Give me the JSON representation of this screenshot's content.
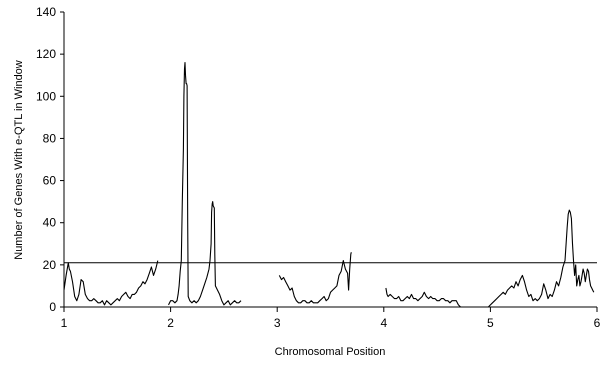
{
  "chart_data": {
    "type": "line",
    "title": "",
    "xlabel": "Chromosomal Position",
    "ylabel": "Number of Genes With e-QTL in Window",
    "xlim": [
      1,
      6
    ],
    "ylim": [
      0,
      140
    ],
    "x_ticks": [
      1,
      2,
      3,
      4,
      5,
      6
    ],
    "y_ticks": [
      0,
      20,
      40,
      60,
      80,
      100,
      120,
      140
    ],
    "grid": false,
    "legend": "none",
    "line_color": "#000000",
    "threshold": {
      "y": 21,
      "label": ""
    },
    "series": [
      {
        "segments": [
          [
            [
              1.0,
              8
            ],
            [
              1.02,
              15
            ],
            [
              1.04,
              21
            ],
            [
              1.05,
              18
            ],
            [
              1.06,
              17
            ],
            [
              1.08,
              12
            ],
            [
              1.1,
              5
            ],
            [
              1.12,
              3
            ],
            [
              1.14,
              6
            ],
            [
              1.16,
              13
            ],
            [
              1.18,
              12
            ],
            [
              1.2,
              6
            ],
            [
              1.22,
              4
            ],
            [
              1.24,
              3
            ],
            [
              1.26,
              3
            ],
            [
              1.28,
              4
            ],
            [
              1.3,
              3
            ],
            [
              1.32,
              2
            ],
            [
              1.34,
              2
            ],
            [
              1.36,
              3
            ],
            [
              1.38,
              1
            ],
            [
              1.4,
              3
            ],
            [
              1.42,
              2
            ],
            [
              1.44,
              1
            ],
            [
              1.46,
              2
            ],
            [
              1.48,
              3
            ],
            [
              1.5,
              4
            ],
            [
              1.52,
              3
            ],
            [
              1.54,
              5
            ],
            [
              1.56,
              6
            ],
            [
              1.58,
              7
            ],
            [
              1.6,
              5
            ],
            [
              1.62,
              4
            ],
            [
              1.64,
              6
            ],
            [
              1.66,
              6
            ],
            [
              1.68,
              7
            ],
            [
              1.7,
              9
            ],
            [
              1.72,
              10
            ],
            [
              1.74,
              12
            ],
            [
              1.76,
              11
            ],
            [
              1.78,
              13
            ],
            [
              1.8,
              16
            ],
            [
              1.82,
              19
            ],
            [
              1.84,
              15
            ],
            [
              1.86,
              18
            ],
            [
              1.88,
              22
            ]
          ],
          [
            [
              1.98,
              1
            ],
            [
              2.0,
              3
            ],
            [
              2.02,
              3
            ],
            [
              2.04,
              2
            ],
            [
              2.06,
              3
            ],
            [
              2.07,
              6
            ],
            [
              2.08,
              10
            ],
            [
              2.09,
              17
            ],
            [
              2.1,
              22
            ],
            [
              2.11,
              50
            ],
            [
              2.12,
              75
            ],
            [
              2.125,
              100
            ],
            [
              2.13,
              113
            ],
            [
              2.135,
              116
            ],
            [
              2.14,
              110
            ],
            [
              2.145,
              106
            ],
            [
              2.15,
              106
            ],
            [
              2.155,
              105
            ],
            [
              2.16,
              40
            ],
            [
              2.165,
              5
            ],
            [
              2.18,
              3
            ],
            [
              2.2,
              2
            ],
            [
              2.22,
              3
            ],
            [
              2.24,
              2
            ],
            [
              2.26,
              3
            ],
            [
              2.28,
              5
            ],
            [
              2.3,
              8
            ],
            [
              2.32,
              11
            ],
            [
              2.34,
              14
            ],
            [
              2.36,
              18
            ],
            [
              2.37,
              22
            ],
            [
              2.38,
              30
            ],
            [
              2.385,
              45
            ],
            [
              2.39,
              49
            ],
            [
              2.395,
              50
            ],
            [
              2.4,
              48
            ],
            [
              2.41,
              47
            ],
            [
              2.415,
              25
            ],
            [
              2.42,
              10
            ],
            [
              2.44,
              8
            ],
            [
              2.46,
              6
            ],
            [
              2.48,
              3
            ],
            [
              2.5,
              1
            ],
            [
              2.52,
              2
            ],
            [
              2.54,
              3
            ],
            [
              2.56,
              1
            ],
            [
              2.58,
              2
            ],
            [
              2.6,
              3
            ],
            [
              2.62,
              2
            ],
            [
              2.64,
              2
            ],
            [
              2.66,
              3
            ]
          ],
          [
            [
              3.02,
              15
            ],
            [
              3.04,
              13
            ],
            [
              3.06,
              14
            ],
            [
              3.08,
              12
            ],
            [
              3.1,
              10
            ],
            [
              3.12,
              8
            ],
            [
              3.14,
              9
            ],
            [
              3.16,
              5
            ],
            [
              3.18,
              3
            ],
            [
              3.2,
              2
            ],
            [
              3.22,
              2
            ],
            [
              3.24,
              3
            ],
            [
              3.26,
              3
            ],
            [
              3.28,
              2
            ],
            [
              3.3,
              2
            ],
            [
              3.32,
              3
            ],
            [
              3.34,
              2
            ],
            [
              3.36,
              2
            ],
            [
              3.38,
              2
            ],
            [
              3.4,
              3
            ],
            [
              3.42,
              4
            ],
            [
              3.44,
              5
            ],
            [
              3.46,
              3
            ],
            [
              3.48,
              4
            ],
            [
              3.5,
              7
            ],
            [
              3.52,
              8
            ],
            [
              3.54,
              9
            ],
            [
              3.56,
              10
            ],
            [
              3.58,
              15
            ],
            [
              3.6,
              17
            ],
            [
              3.62,
              22
            ],
            [
              3.64,
              18
            ],
            [
              3.66,
              16
            ],
            [
              3.67,
              8
            ],
            [
              3.68,
              18
            ],
            [
              3.69,
              25
            ],
            [
              3.695,
              26
            ]
          ],
          [
            [
              4.02,
              9
            ],
            [
              4.03,
              6
            ],
            [
              4.04,
              5
            ],
            [
              4.06,
              6
            ],
            [
              4.08,
              5
            ],
            [
              4.1,
              4
            ],
            [
              4.12,
              4
            ],
            [
              4.14,
              5
            ],
            [
              4.16,
              3
            ],
            [
              4.18,
              3
            ],
            [
              4.2,
              4
            ],
            [
              4.22,
              5
            ],
            [
              4.24,
              4
            ],
            [
              4.26,
              6
            ],
            [
              4.28,
              4
            ],
            [
              4.3,
              4
            ],
            [
              4.32,
              3
            ],
            [
              4.34,
              4
            ],
            [
              4.36,
              5
            ],
            [
              4.38,
              7
            ],
            [
              4.4,
              5
            ],
            [
              4.42,
              4
            ],
            [
              4.44,
              5
            ],
            [
              4.46,
              4
            ],
            [
              4.48,
              4
            ],
            [
              4.5,
              3
            ],
            [
              4.52,
              3
            ],
            [
              4.54,
              4
            ],
            [
              4.56,
              4
            ],
            [
              4.58,
              3
            ],
            [
              4.6,
              3
            ],
            [
              4.62,
              2
            ],
            [
              4.64,
              3
            ],
            [
              4.66,
              3
            ],
            [
              4.68,
              3
            ],
            [
              4.7,
              1
            ],
            [
              4.72,
              0
            ],
            [
              4.74,
              0
            ]
          ],
          [
            [
              4.98,
              0
            ],
            [
              5.0,
              1
            ],
            [
              5.02,
              2
            ],
            [
              5.04,
              3
            ],
            [
              5.06,
              4
            ],
            [
              5.08,
              5
            ],
            [
              5.1,
              6
            ],
            [
              5.12,
              7
            ],
            [
              5.14,
              6
            ],
            [
              5.16,
              8
            ],
            [
              5.18,
              9
            ],
            [
              5.2,
              10
            ],
            [
              5.22,
              9
            ],
            [
              5.24,
              12
            ],
            [
              5.26,
              10
            ],
            [
              5.28,
              13
            ],
            [
              5.3,
              15
            ],
            [
              5.32,
              12
            ],
            [
              5.34,
              8
            ],
            [
              5.36,
              5
            ],
            [
              5.38,
              6
            ],
            [
              5.4,
              3
            ],
            [
              5.42,
              4
            ],
            [
              5.44,
              3
            ],
            [
              5.46,
              4
            ],
            [
              5.48,
              6
            ],
            [
              5.5,
              11
            ],
            [
              5.52,
              8
            ],
            [
              5.54,
              4
            ],
            [
              5.56,
              6
            ],
            [
              5.58,
              5
            ],
            [
              5.6,
              8
            ],
            [
              5.62,
              12
            ],
            [
              5.64,
              10
            ],
            [
              5.66,
              14
            ],
            [
              5.68,
              19
            ],
            [
              5.7,
              22
            ],
            [
              5.71,
              30
            ],
            [
              5.72,
              38
            ],
            [
              5.73,
              44
            ],
            [
              5.74,
              46
            ],
            [
              5.75,
              45
            ],
            [
              5.76,
              42
            ],
            [
              5.77,
              30
            ],
            [
              5.78,
              22
            ],
            [
              5.79,
              15
            ],
            [
              5.8,
              20
            ],
            [
              5.81,
              10
            ],
            [
              5.82,
              13
            ],
            [
              5.83,
              15
            ],
            [
              5.84,
              10
            ],
            [
              5.85,
              12
            ],
            [
              5.86,
              15
            ],
            [
              5.87,
              18
            ],
            [
              5.88,
              16
            ],
            [
              5.89,
              12
            ],
            [
              5.9,
              15
            ],
            [
              5.91,
              18
            ],
            [
              5.92,
              17
            ],
            [
              5.93,
              13
            ],
            [
              5.94,
              10
            ],
            [
              5.95,
              9
            ],
            [
              5.96,
              8
            ],
            [
              5.97,
              7
            ]
          ]
        ]
      }
    ]
  }
}
